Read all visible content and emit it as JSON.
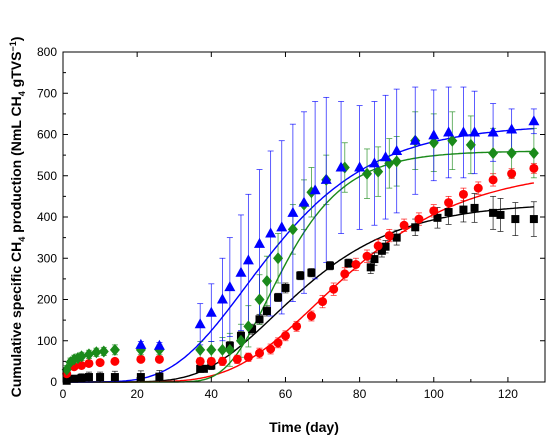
{
  "chart_data": {
    "type": "scatter",
    "title": "",
    "xlabel": "Time (day)",
    "ylabel": "Cumulative specific CH4 production (NmL CH4 gTVS⁻¹)",
    "ylabel_parts": {
      "a": "Cumulative specific CH",
      "a_sub": "4",
      "b": " production (NmL CH",
      "b_sub": "4",
      "c": " gTVS",
      "c_sup": "−1",
      "d": ")"
    },
    "xlim": [
      0,
      130
    ],
    "ylim": [
      0,
      800
    ],
    "xticks": [
      0,
      20,
      40,
      60,
      80,
      100,
      120
    ],
    "yticks": [
      0,
      100,
      200,
      300,
      400,
      500,
      600,
      700,
      800
    ],
    "grid": false,
    "legend": "none",
    "series": [
      {
        "marker": "square",
        "color": "#000000",
        "points": [
          {
            "x": 1,
            "y": 3,
            "err": 4
          },
          {
            "x": 3,
            "y": 8,
            "err": 8
          },
          {
            "x": 5,
            "y": 10,
            "err": 10
          },
          {
            "x": 7,
            "y": 12,
            "err": 12
          },
          {
            "x": 10,
            "y": 12,
            "err": 12
          },
          {
            "x": 14,
            "y": 12,
            "err": 14
          },
          {
            "x": 21,
            "y": 12,
            "err": 15
          },
          {
            "x": 26,
            "y": 13,
            "err": 15
          },
          {
            "x": 37,
            "y": 32,
            "err": 8
          },
          {
            "x": 38,
            "y": 32,
            "err": 8
          },
          {
            "x": 40,
            "y": 40,
            "err": 10
          },
          {
            "x": 45,
            "y": 88,
            "err": 10
          },
          {
            "x": 48,
            "y": 112,
            "err": 10
          },
          {
            "x": 51,
            "y": 128,
            "err": 12
          },
          {
            "x": 53,
            "y": 152,
            "err": 12
          },
          {
            "x": 55,
            "y": 172,
            "err": 12
          },
          {
            "x": 58,
            "y": 205,
            "err": 10
          },
          {
            "x": 60,
            "y": 228,
            "err": 12
          },
          {
            "x": 64,
            "y": 258,
            "err": 10
          },
          {
            "x": 67,
            "y": 265,
            "err": 10
          },
          {
            "x": 72,
            "y": 282,
            "err": 10
          },
          {
            "x": 77,
            "y": 288,
            "err": 10
          },
          {
            "x": 83,
            "y": 278,
            "err": 15
          },
          {
            "x": 84,
            "y": 298,
            "err": 15
          },
          {
            "x": 86,
            "y": 318,
            "err": 15
          },
          {
            "x": 87,
            "y": 328,
            "err": 15
          },
          {
            "x": 90,
            "y": 350,
            "err": 18
          },
          {
            "x": 95,
            "y": 375,
            "err": 20
          },
          {
            "x": 101,
            "y": 398,
            "err": 25
          },
          {
            "x": 104,
            "y": 412,
            "err": 30
          },
          {
            "x": 108,
            "y": 418,
            "err": 30
          },
          {
            "x": 111,
            "y": 422,
            "err": 35
          },
          {
            "x": 116,
            "y": 410,
            "err": 40
          },
          {
            "x": 118,
            "y": 405,
            "err": 40
          },
          {
            "x": 122,
            "y": 395,
            "err": 40
          },
          {
            "x": 127,
            "y": 395,
            "err": 42
          }
        ]
      },
      {
        "marker": "circle",
        "color": "#ff0000",
        "points": [
          {
            "x": 1,
            "y": 20,
            "err": 5
          },
          {
            "x": 3,
            "y": 37,
            "err": 5
          },
          {
            "x": 5,
            "y": 40,
            "err": 5
          },
          {
            "x": 7,
            "y": 45,
            "err": 5
          },
          {
            "x": 10,
            "y": 47,
            "err": 5
          },
          {
            "x": 14,
            "y": 50,
            "err": 5
          },
          {
            "x": 21,
            "y": 55,
            "err": 5
          },
          {
            "x": 26,
            "y": 55,
            "err": 5
          },
          {
            "x": 37,
            "y": 50,
            "err": 8
          },
          {
            "x": 40,
            "y": 50,
            "err": 8
          },
          {
            "x": 43,
            "y": 50,
            "err": 10
          },
          {
            "x": 47,
            "y": 55,
            "err": 10
          },
          {
            "x": 50,
            "y": 60,
            "err": 10
          },
          {
            "x": 53,
            "y": 70,
            "err": 12
          },
          {
            "x": 56,
            "y": 80,
            "err": 12
          },
          {
            "x": 58,
            "y": 95,
            "err": 12
          },
          {
            "x": 60,
            "y": 112,
            "err": 12
          },
          {
            "x": 63,
            "y": 135,
            "err": 12
          },
          {
            "x": 67,
            "y": 160,
            "err": 12
          },
          {
            "x": 70,
            "y": 195,
            "err": 15
          },
          {
            "x": 73,
            "y": 225,
            "err": 15
          },
          {
            "x": 76,
            "y": 262,
            "err": 15
          },
          {
            "x": 79,
            "y": 285,
            "err": 15
          },
          {
            "x": 82,
            "y": 305,
            "err": 15
          },
          {
            "x": 85,
            "y": 330,
            "err": 15
          },
          {
            "x": 88,
            "y": 355,
            "err": 15
          },
          {
            "x": 92,
            "y": 380,
            "err": 15
          },
          {
            "x": 96,
            "y": 395,
            "err": 15
          },
          {
            "x": 100,
            "y": 415,
            "err": 15
          },
          {
            "x": 104,
            "y": 435,
            "err": 15
          },
          {
            "x": 108,
            "y": 455,
            "err": 15
          },
          {
            "x": 112,
            "y": 470,
            "err": 15
          },
          {
            "x": 116,
            "y": 490,
            "err": 15
          },
          {
            "x": 121,
            "y": 505,
            "err": 12
          },
          {
            "x": 127,
            "y": 518,
            "err": 12
          }
        ]
      },
      {
        "marker": "diamond",
        "color": "#1a8a1a",
        "points": [
          {
            "x": 1,
            "y": 30,
            "err": 10
          },
          {
            "x": 2,
            "y": 48,
            "err": 10
          },
          {
            "x": 3,
            "y": 55,
            "err": 10
          },
          {
            "x": 4,
            "y": 58,
            "err": 10
          },
          {
            "x": 5,
            "y": 62,
            "err": 10
          },
          {
            "x": 7,
            "y": 67,
            "err": 10
          },
          {
            "x": 9,
            "y": 72,
            "err": 10
          },
          {
            "x": 11,
            "y": 74,
            "err": 10
          },
          {
            "x": 14,
            "y": 78,
            "err": 12
          },
          {
            "x": 21,
            "y": 78,
            "err": 12
          },
          {
            "x": 26,
            "y": 78,
            "err": 12
          },
          {
            "x": 37,
            "y": 78,
            "err": 20
          },
          {
            "x": 40,
            "y": 78,
            "err": 20
          },
          {
            "x": 43,
            "y": 78,
            "err": 30
          },
          {
            "x": 45,
            "y": 78,
            "err": 40
          },
          {
            "x": 48,
            "y": 100,
            "err": 40
          },
          {
            "x": 50,
            "y": 135,
            "err": 50
          },
          {
            "x": 53,
            "y": 200,
            "err": 60
          },
          {
            "x": 55,
            "y": 245,
            "err": 60
          },
          {
            "x": 58,
            "y": 300,
            "err": 60
          },
          {
            "x": 62,
            "y": 370,
            "err": 60
          },
          {
            "x": 65,
            "y": 430,
            "err": 60
          },
          {
            "x": 67,
            "y": 460,
            "err": 60
          },
          {
            "x": 71,
            "y": 490,
            "err": 60
          },
          {
            "x": 76,
            "y": 520,
            "err": 60
          },
          {
            "x": 82,
            "y": 505,
            "err": 60
          },
          {
            "x": 85,
            "y": 510,
            "err": 60
          },
          {
            "x": 88,
            "y": 530,
            "err": 60
          },
          {
            "x": 90,
            "y": 535,
            "err": 60
          },
          {
            "x": 95,
            "y": 585,
            "err": 70
          },
          {
            "x": 100,
            "y": 580,
            "err": 70
          },
          {
            "x": 105,
            "y": 585,
            "err": 70
          },
          {
            "x": 110,
            "y": 575,
            "err": 70
          },
          {
            "x": 116,
            "y": 555,
            "err": 60
          },
          {
            "x": 121,
            "y": 555,
            "err": 60
          },
          {
            "x": 127,
            "y": 555,
            "err": 60
          }
        ]
      },
      {
        "marker": "triangle",
        "color": "#0000ff",
        "points": [
          {
            "x": 21,
            "y": 90,
            "err": 8
          },
          {
            "x": 26,
            "y": 88,
            "err": 8
          },
          {
            "x": 37,
            "y": 140,
            "err": 50
          },
          {
            "x": 40,
            "y": 168,
            "err": 70
          },
          {
            "x": 43,
            "y": 200,
            "err": 100
          },
          {
            "x": 45,
            "y": 230,
            "err": 120
          },
          {
            "x": 48,
            "y": 265,
            "err": 140
          },
          {
            "x": 50,
            "y": 295,
            "err": 160
          },
          {
            "x": 53,
            "y": 335,
            "err": 180
          },
          {
            "x": 56,
            "y": 360,
            "err": 200
          },
          {
            "x": 59,
            "y": 375,
            "err": 210
          },
          {
            "x": 62,
            "y": 410,
            "err": 215
          },
          {
            "x": 65,
            "y": 435,
            "err": 220
          },
          {
            "x": 68,
            "y": 465,
            "err": 215
          },
          {
            "x": 71,
            "y": 490,
            "err": 200
          },
          {
            "x": 75,
            "y": 520,
            "err": 160
          },
          {
            "x": 80,
            "y": 520,
            "err": 150
          },
          {
            "x": 84,
            "y": 530,
            "err": 150
          },
          {
            "x": 87,
            "y": 545,
            "err": 150
          },
          {
            "x": 90,
            "y": 560,
            "err": 150
          },
          {
            "x": 95,
            "y": 585,
            "err": 130
          },
          {
            "x": 100,
            "y": 598,
            "err": 110
          },
          {
            "x": 104,
            "y": 605,
            "err": 110
          },
          {
            "x": 108,
            "y": 605,
            "err": 110
          },
          {
            "x": 111,
            "y": 605,
            "err": 100
          },
          {
            "x": 116,
            "y": 605,
            "err": 70
          },
          {
            "x": 121,
            "y": 612,
            "err": 50
          },
          {
            "x": 127,
            "y": 632,
            "err": 30
          }
        ]
      }
    ],
    "fits": [
      {
        "color": "#000000",
        "P": 435,
        "Rm": 8.5,
        "lambda": 38
      },
      {
        "color": "#ff0000",
        "P": 520,
        "Rm": 8.5,
        "lambda": 46
      },
      {
        "color": "#1a8a1a",
        "P": 560,
        "Rm": 18,
        "lambda": 44
      },
      {
        "color": "#0000ff",
        "P": 625,
        "Rm": 12,
        "lambda": 30
      }
    ]
  }
}
